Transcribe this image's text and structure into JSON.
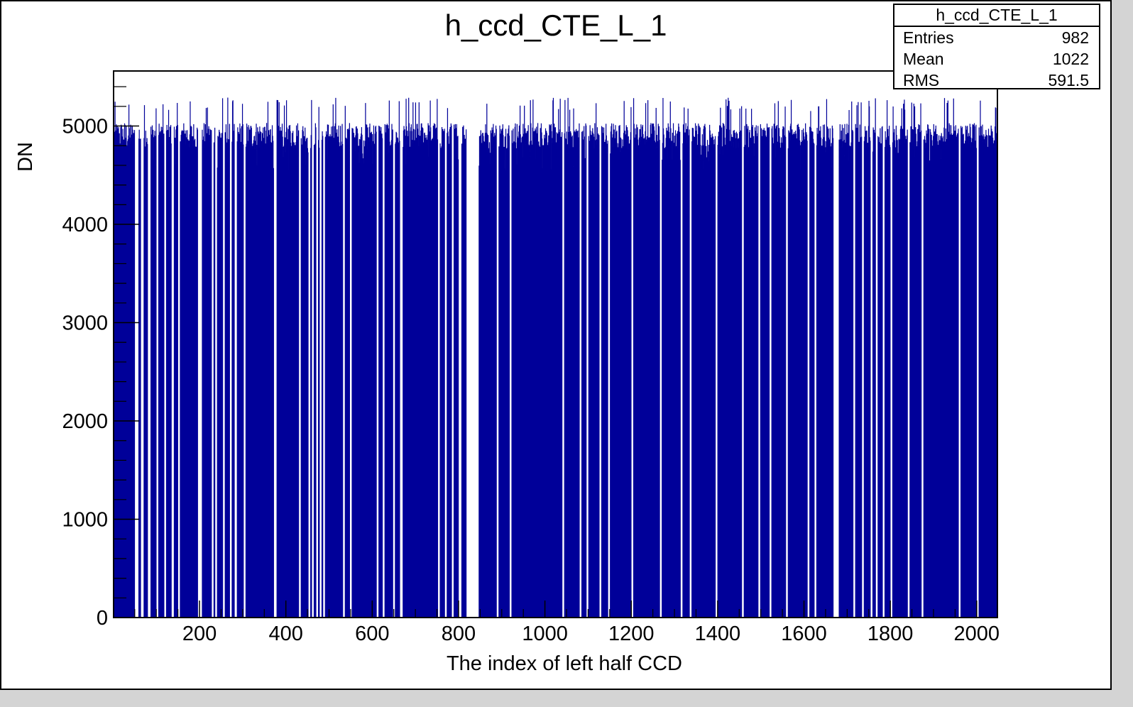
{
  "chart_data": {
    "type": "bar",
    "title": "h_ccd_CTE_L_1",
    "xlabel": "The index of left half CCD",
    "ylabel": "DN",
    "xlim": [
      1,
      2048
    ],
    "ylim": [
      0,
      5560
    ],
    "xticks": [
      200,
      400,
      600,
      800,
      1000,
      1200,
      1400,
      1600,
      1800,
      2000
    ],
    "yticks": [
      0,
      1000,
      2000,
      3000,
      4000,
      5000
    ],
    "color": "#000099",
    "baseline": 4900,
    "gaps": [
      [
        50,
        58
      ],
      [
        64,
        70
      ],
      [
        80,
        86
      ],
      [
        100,
        104
      ],
      [
        118,
        122
      ],
      [
        135,
        140
      ],
      [
        150,
        154
      ],
      [
        196,
        205
      ],
      [
        228,
        232
      ],
      [
        236,
        240
      ],
      [
        254,
        258
      ],
      [
        270,
        274
      ],
      [
        281,
        286
      ],
      [
        302,
        306
      ],
      [
        372,
        378
      ],
      [
        430,
        434
      ],
      [
        452,
        456
      ],
      [
        460,
        464
      ],
      [
        470,
        474
      ],
      [
        478,
        482
      ],
      [
        486,
        490
      ],
      [
        532,
        536
      ],
      [
        548,
        552
      ],
      [
        610,
        614
      ],
      [
        624,
        628
      ],
      [
        648,
        652
      ],
      [
        664,
        670
      ],
      [
        752,
        756
      ],
      [
        768,
        772
      ],
      [
        784,
        788
      ],
      [
        800,
        806
      ],
      [
        818,
        846
      ],
      [
        888,
        892
      ],
      [
        918,
        922
      ],
      [
        1040,
        1044
      ],
      [
        1080,
        1084
      ],
      [
        1096,
        1100
      ],
      [
        1126,
        1130
      ],
      [
        1146,
        1150
      ],
      [
        1200,
        1204
      ],
      [
        1266,
        1270
      ],
      [
        1314,
        1318
      ],
      [
        1335,
        1339
      ],
      [
        1395,
        1399
      ],
      [
        1456,
        1460
      ],
      [
        1494,
        1498
      ],
      [
        1520,
        1524
      ],
      [
        1558,
        1562
      ],
      [
        1608,
        1612
      ],
      [
        1624,
        1628
      ],
      [
        1668,
        1680
      ],
      [
        1714,
        1718
      ],
      [
        1734,
        1738
      ],
      [
        1754,
        1758
      ],
      [
        1766,
        1770
      ],
      [
        1782,
        1786
      ],
      [
        1800,
        1804
      ],
      [
        1840,
        1844
      ],
      [
        1872,
        1876
      ],
      [
        1958,
        1962
      ],
      [
        2000,
        2004
      ]
    ]
  },
  "stats": {
    "title": "h_ccd_CTE_L_1",
    "rows": [
      {
        "label": "Entries",
        "value": "982"
      },
      {
        "label": "Mean",
        "value": "1022"
      },
      {
        "label": "RMS",
        "value": "591.5"
      }
    ]
  }
}
